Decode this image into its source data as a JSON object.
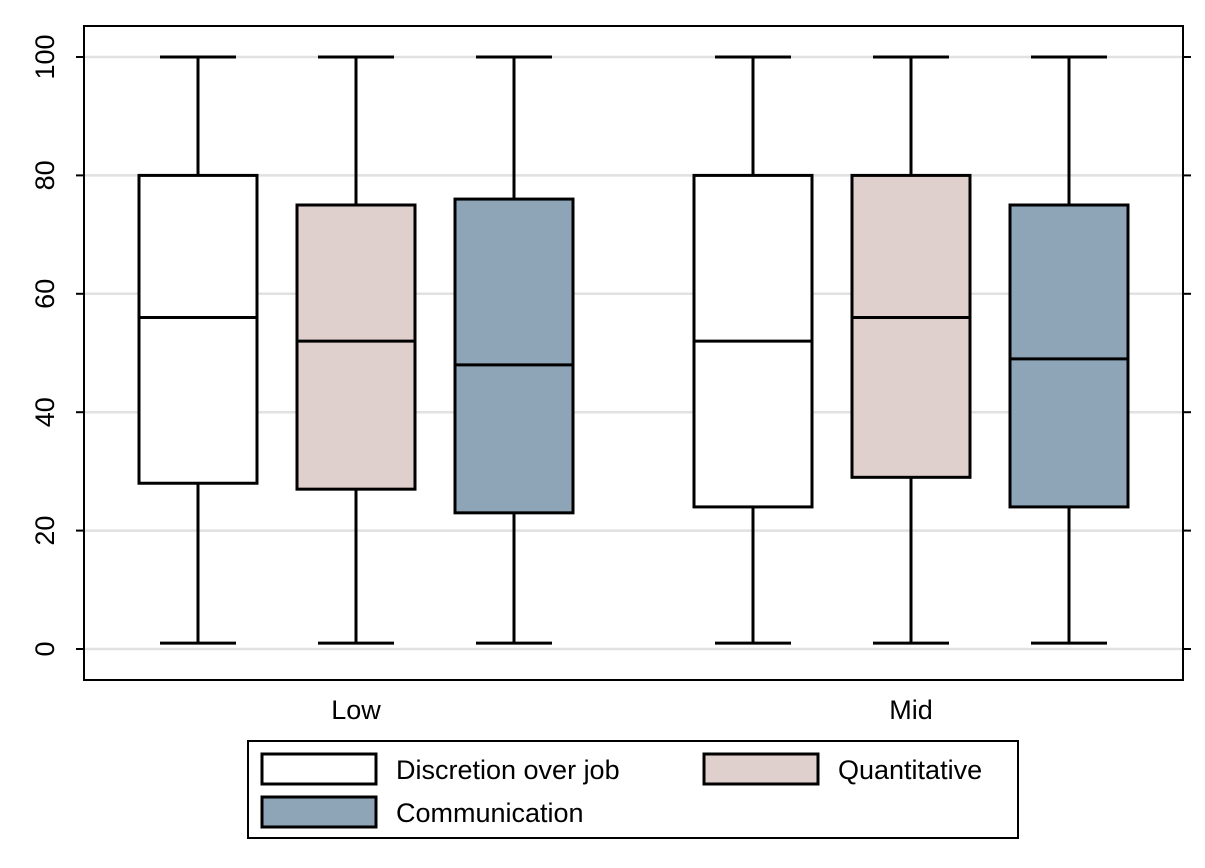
{
  "chart_data": {
    "type": "boxplot",
    "categories": [
      "Low",
      "Mid"
    ],
    "ylim": [
      -5,
      106
    ],
    "yticks": [
      0,
      20,
      40,
      60,
      80,
      100
    ],
    "grid": true,
    "legend_position": "bottom",
    "series": [
      {
        "name": "Discretion over job",
        "color": "#ffffff",
        "boxes": [
          {
            "category": "Low",
            "min": 1,
            "q1": 28,
            "median": 56,
            "q3": 80,
            "max": 100
          },
          {
            "category": "Mid",
            "min": 1,
            "q1": 24,
            "median": 52,
            "q3": 80,
            "max": 100
          }
        ]
      },
      {
        "name": "Quantitative",
        "color": "#e0d0cd",
        "boxes": [
          {
            "category": "Low",
            "min": 1,
            "q1": 27,
            "median": 52,
            "q3": 75,
            "max": 100
          },
          {
            "category": "Mid",
            "min": 1,
            "q1": 29,
            "median": 56,
            "q3": 80,
            "max": 100
          }
        ]
      },
      {
        "name": "Communication",
        "color": "#8ea5b8",
        "boxes": [
          {
            "category": "Low",
            "min": 1,
            "q1": 23,
            "median": 48,
            "q3": 76,
            "max": 100
          },
          {
            "category": "Mid",
            "min": 1,
            "q1": 24,
            "median": 49,
            "q3": 75,
            "max": 100
          }
        ]
      }
    ]
  }
}
